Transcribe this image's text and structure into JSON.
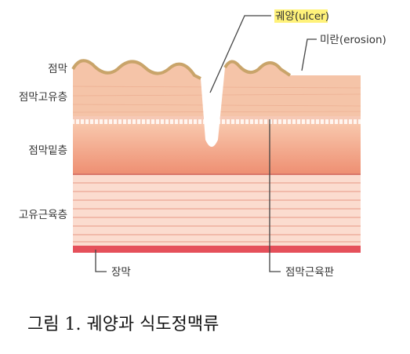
{
  "diagram": {
    "callouts": [
      {
        "label": "궤양(ulcer)"
      },
      {
        "label": "미란(erosion)"
      }
    ],
    "layers": [
      {
        "label": "점막"
      },
      {
        "label": "점막고유층"
      },
      {
        "label": "점막밑층"
      },
      {
        "label": "고유근육층"
      }
    ],
    "bottom_labels": [
      {
        "label": "장막"
      },
      {
        "label": "점막근육판"
      }
    ]
  },
  "caption": "그림 1. 궤양과 식도정맥류"
}
